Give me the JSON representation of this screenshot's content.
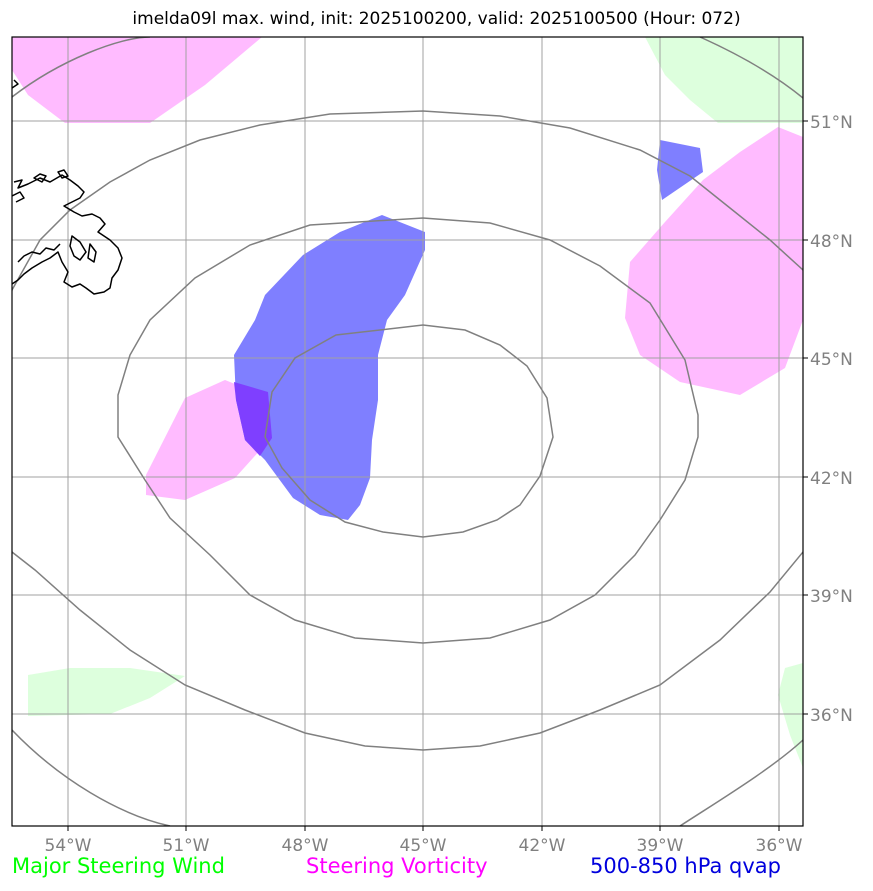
{
  "title": "imelda09l max. wind, init: 2025100200, valid: 2025100500 (Hour: 072)",
  "map": {
    "lon_labels": [
      "54°W",
      "51°W",
      "48°W",
      "45°W",
      "42°W",
      "39°W",
      "36°W"
    ],
    "lat_labels": [
      "51°N",
      "48°N",
      "45°N",
      "42°N",
      "39°N",
      "36°N"
    ]
  },
  "legend": {
    "wind": {
      "label": "Major Steering Wind",
      "color": "#00ff00"
    },
    "vorticity": {
      "label": "Steering Vorticity",
      "color": "#ff00ff"
    },
    "qvap": {
      "label": "500-850 hPa qvap",
      "color": "#0000dd"
    }
  },
  "colors": {
    "wind_fill": "#ddffdd",
    "vorticity_fill": "#ffbbff",
    "qvap_fill": "#7f7fff",
    "overlap_fill": "#7f3fff",
    "grid": "#a0a0a0",
    "contour": "#808080",
    "tick_label": "#808080"
  }
}
